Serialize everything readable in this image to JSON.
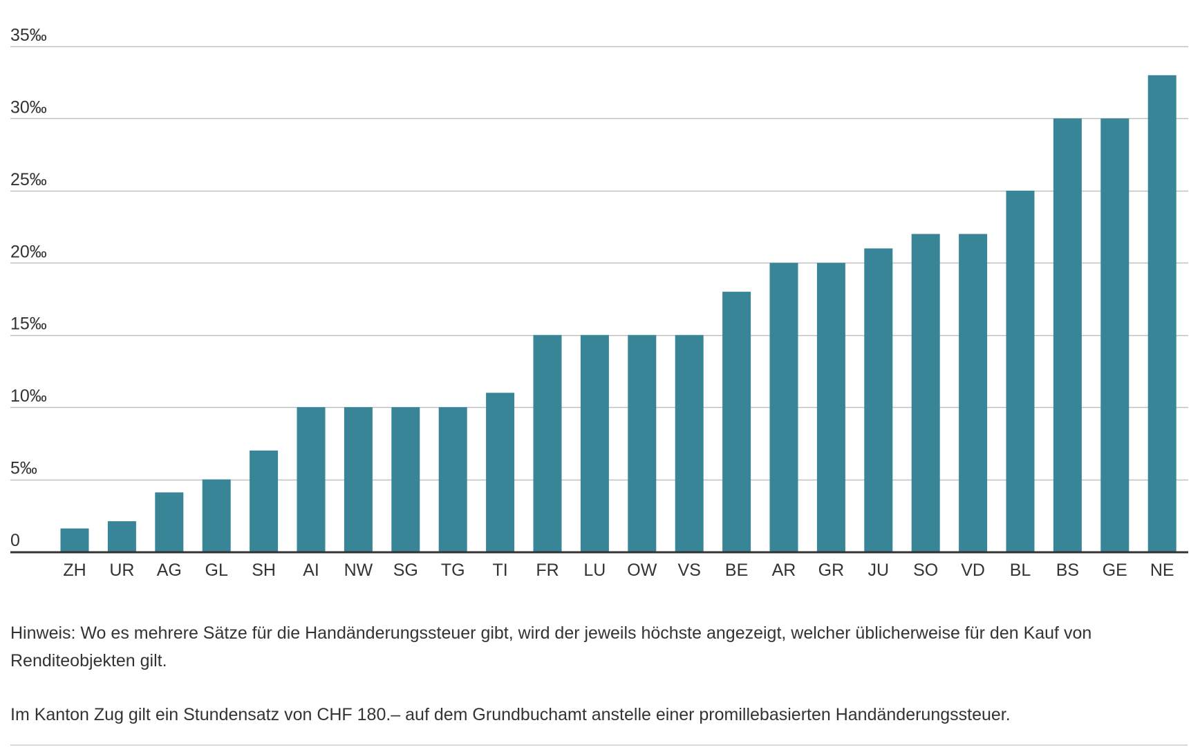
{
  "chart_data": {
    "type": "bar",
    "categories": [
      "ZH",
      "UR",
      "AG",
      "GL",
      "SH",
      "AI",
      "NW",
      "SG",
      "TG",
      "TI",
      "FR",
      "LU",
      "OW",
      "VS",
      "BE",
      "AR",
      "GR",
      "JU",
      "SO",
      "VD",
      "BL",
      "BS",
      "GE",
      "NE"
    ],
    "values": [
      1.6,
      2.1,
      4.1,
      5,
      7,
      10,
      10,
      10,
      10,
      11,
      15,
      15,
      15,
      15,
      18,
      20,
      20,
      21,
      22,
      22,
      25,
      30,
      30,
      33
    ],
    "ylim": [
      0,
      35
    ],
    "yticks": [
      0,
      5,
      10,
      15,
      20,
      25,
      30,
      35
    ],
    "ytick_labels": [
      "0",
      "5‰",
      "10‰",
      "15‰",
      "20‰",
      "25‰",
      "30‰",
      "35‰"
    ],
    "grid": true,
    "bar_color": "#378597",
    "grid_color": "#bfbfbf",
    "axis_color": "#333333"
  },
  "notes": {
    "hint": "Hinweis: Wo es mehrere Sätze für die Handänderungssteuer gibt, wird der jeweils höchste angezeigt, welcher üblicherweise für den Kauf von Renditeobjekten gilt.",
    "zug": "Im Kanton Zug gilt ein Stundensatz von CHF 180.– auf dem Grundbuchamt anstelle einer promillebasierten Handänderungssteuer."
  }
}
